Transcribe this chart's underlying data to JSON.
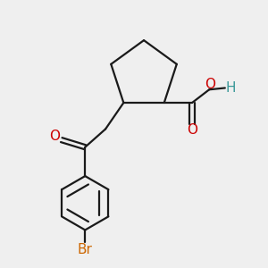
{
  "background_color": "#efefef",
  "bond_color": "#1a1a1a",
  "oxygen_color": "#cc0000",
  "bromine_color": "#cc6600",
  "hydrogen_color": "#3a9898",
  "line_width": 1.6,
  "figsize": [
    3.0,
    3.0
  ],
  "dpi": 100,
  "xlim": [
    1.0,
    8.0
  ],
  "ylim": [
    0.5,
    8.5
  ]
}
